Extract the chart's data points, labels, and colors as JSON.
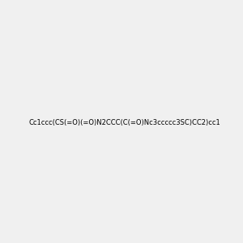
{
  "smiles": "Cc1ccc(CS(=O)(=O)N2CCC(C(=O)Nc3ccccc3SC)CC2)cc1",
  "image_size": 300,
  "background_color": "#f0f0f0",
  "atom_colors": {
    "N": "blue",
    "O": "red",
    "S": "yellow",
    "C": "black",
    "H": "gray"
  }
}
